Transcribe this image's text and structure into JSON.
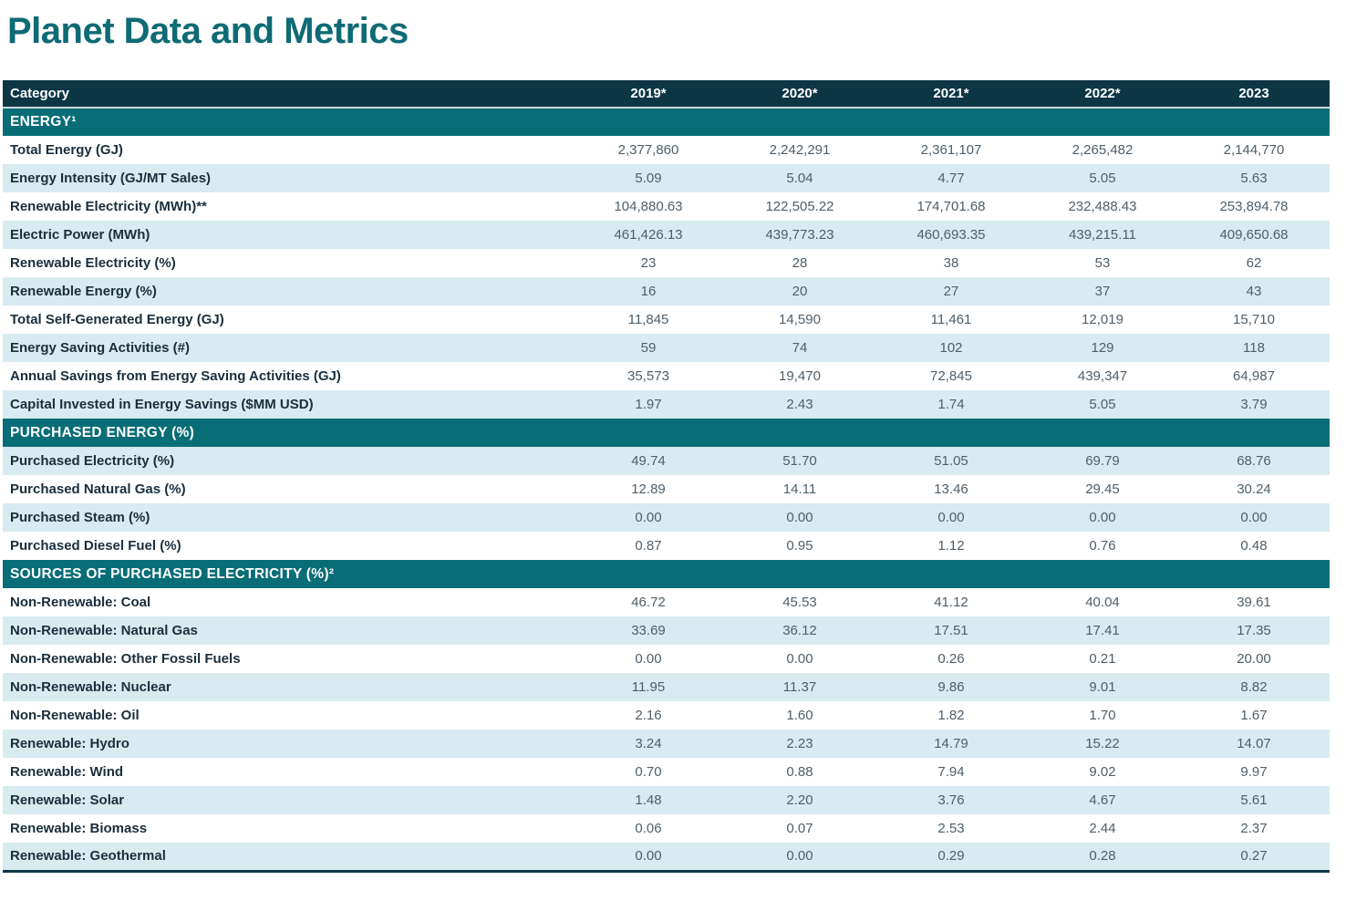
{
  "page": {
    "title": "Planet Data and Metrics"
  },
  "colors": {
    "title_teal": "#0d6b75",
    "header_navy": "#0d3645",
    "section_teal": "#096d77",
    "row_stripe_blue": "#d8ebf0"
  },
  "table": {
    "columns": [
      "Category",
      "2019*",
      "2020*",
      "2021*",
      "2022*",
      "2023"
    ],
    "sections": [
      {
        "header": "ENERGY¹",
        "rows": [
          {
            "label": "Total Energy (GJ)",
            "values": [
              "2,377,860",
              "2,242,291",
              "2,361,107",
              "2,265,482",
              "2,144,770"
            ]
          },
          {
            "label": "Energy Intensity (GJ/MT Sales)",
            "values": [
              "5.09",
              "5.04",
              "4.77",
              "5.05",
              "5.63"
            ]
          },
          {
            "label": "Renewable Electricity (MWh)**",
            "values": [
              "104,880.63",
              "122,505.22",
              "174,701.68",
              "232,488.43",
              "253,894.78"
            ]
          },
          {
            "label": "Electric Power (MWh)",
            "values": [
              "461,426.13",
              "439,773.23",
              "460,693.35",
              "439,215.11",
              "409,650.68"
            ]
          },
          {
            "label": "Renewable Electricity (%)",
            "values": [
              "23",
              "28",
              "38",
              "53",
              "62"
            ]
          },
          {
            "label": "Renewable Energy (%)",
            "values": [
              "16",
              "20",
              "27",
              "37",
              "43"
            ]
          },
          {
            "label": "Total Self-Generated Energy (GJ)",
            "values": [
              "11,845",
              "14,590",
              "11,461",
              "12,019",
              "15,710"
            ]
          },
          {
            "label": "Energy Saving Activities (#)",
            "values": [
              "59",
              "74",
              "102",
              "129",
              "118"
            ]
          },
          {
            "label": "Annual Savings from Energy Saving Activities (GJ)",
            "values": [
              "35,573",
              "19,470",
              "72,845",
              "439,347",
              "64,987"
            ]
          },
          {
            "label": "Capital Invested in Energy Savings ($MM USD)",
            "values": [
              "1.97",
              "2.43",
              "1.74",
              "5.05",
              "3.79"
            ]
          }
        ]
      },
      {
        "header": "PURCHASED ENERGY (%)",
        "rows": [
          {
            "label": "Purchased Electricity (%)",
            "values": [
              "49.74",
              "51.70",
              "51.05",
              "69.79",
              "68.76"
            ]
          },
          {
            "label": "Purchased Natural Gas (%)",
            "values": [
              "12.89",
              "14.11",
              "13.46",
              "29.45",
              "30.24"
            ]
          },
          {
            "label": "Purchased Steam (%)",
            "values": [
              "0.00",
              "0.00",
              "0.00",
              "0.00",
              "0.00"
            ]
          },
          {
            "label": "Purchased Diesel Fuel (%)",
            "values": [
              "0.87",
              "0.95",
              "1.12",
              "0.76",
              "0.48"
            ]
          }
        ]
      },
      {
        "header": "SOURCES OF PURCHASED ELECTRICITY (%)²",
        "rows": [
          {
            "label": "Non-Renewable: Coal",
            "values": [
              "46.72",
              "45.53",
              "41.12",
              "40.04",
              "39.61"
            ]
          },
          {
            "label": "Non-Renewable: Natural Gas",
            "values": [
              "33.69",
              "36.12",
              "17.51",
              "17.41",
              "17.35"
            ]
          },
          {
            "label": "Non-Renewable: Other Fossil Fuels",
            "values": [
              "0.00",
              "0.00",
              "0.26",
              "0.21",
              "20.00"
            ]
          },
          {
            "label": "Non-Renewable: Nuclear",
            "values": [
              "11.95",
              "11.37",
              "9.86",
              "9.01",
              "8.82"
            ]
          },
          {
            "label": "Non-Renewable: Oil",
            "values": [
              "2.16",
              "1.60",
              "1.82",
              "1.70",
              "1.67"
            ]
          },
          {
            "label": "Renewable: Hydro",
            "values": [
              "3.24",
              "2.23",
              "14.79",
              "15.22",
              "14.07"
            ]
          },
          {
            "label": "Renewable: Wind",
            "values": [
              "0.70",
              "0.88",
              "7.94",
              "9.02",
              "9.97"
            ]
          },
          {
            "label": "Renewable: Solar",
            "values": [
              "1.48",
              "2.20",
              "3.76",
              "4.67",
              "5.61"
            ]
          },
          {
            "label": "Renewable: Biomass",
            "values": [
              "0.06",
              "0.07",
              "2.53",
              "2.44",
              "2.37"
            ]
          },
          {
            "label": "Renewable: Geothermal",
            "values": [
              "0.00",
              "0.00",
              "0.29",
              "0.28",
              "0.27"
            ]
          }
        ]
      }
    ]
  }
}
